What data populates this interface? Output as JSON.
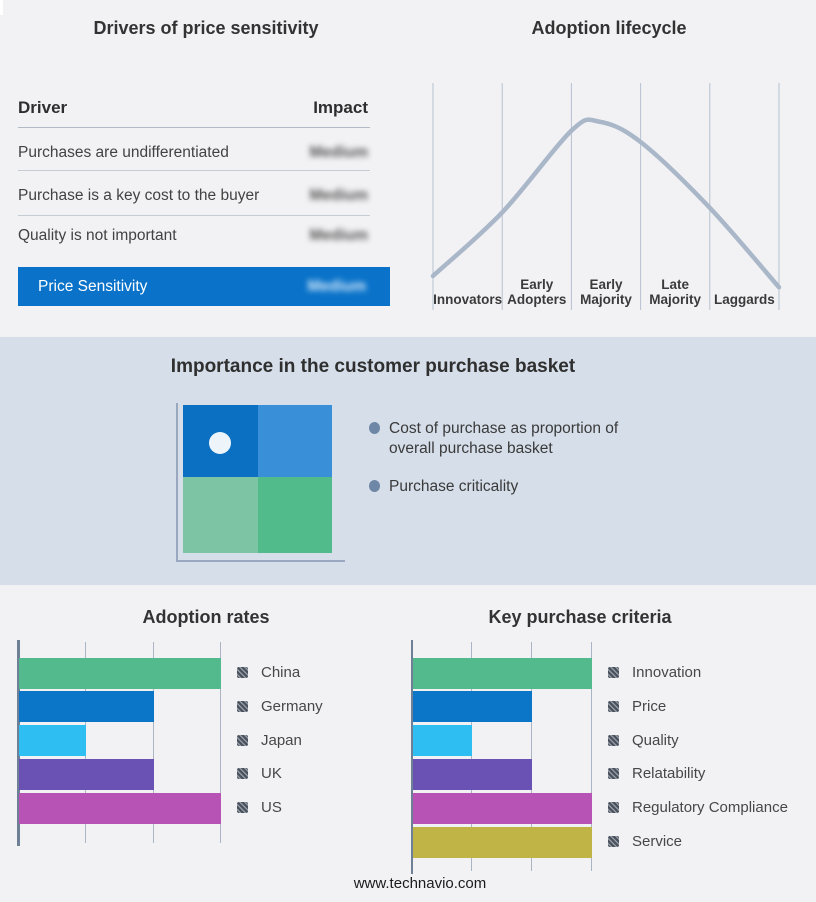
{
  "footer": {
    "text": "www.technavio.com"
  },
  "colors": {
    "page_bg": "#f2f2f4",
    "band_bg": "#d5dee9",
    "brand_blue": "#0a73c9",
    "curve": "#a9b7c9",
    "lifecycle_grid": "#b6c1d0",
    "chart_grid": "#aab6c6",
    "chart_axis": "#6e8096",
    "bullet_dot": "#6f87a6",
    "quadrant_top_left": "#0b6fc2",
    "quadrant_top_right": "#3990d9",
    "quadrant_bottom_left": "#7cc4a4",
    "quadrant_bottom_right": "#52bb8b",
    "quadrant_dot": "#edf5fb"
  },
  "drivers_panel": {
    "title": "Drivers of price sensitivity",
    "columns": {
      "driver": "Driver",
      "impact": "Impact"
    },
    "rows": [
      {
        "driver": "Purchases are undifferentiated",
        "impact": "Medium",
        "impact_blurred": true
      },
      {
        "driver": "Purchase is a key cost to the buyer",
        "impact": "Medium",
        "impact_blurred": true
      },
      {
        "driver": "Quality is not important",
        "impact": "Medium",
        "impact_blurred": true
      }
    ],
    "summary_row": {
      "label": "Price Sensitivity",
      "impact": "Medium",
      "impact_blurred": true
    }
  },
  "basket_panel": {
    "title": "Importance in the customer purchase basket",
    "bullets": [
      "Cost of purchase as proportion of\noverall purchase basket",
      "Purchase criticality"
    ]
  },
  "chart_data": [
    {
      "id": "adoption-lifecycle",
      "type": "line",
      "title": "Adoption lifecycle",
      "categories": [
        "Innovators",
        "Early Adopters",
        "Early Majority",
        "Late Majority",
        "Laggards"
      ],
      "curve_points_norm": [
        [
          0,
          0.15
        ],
        [
          0.2,
          0.43
        ],
        [
          0.4,
          0.79
        ],
        [
          0.48,
          0.83
        ],
        [
          0.6,
          0.74
        ],
        [
          0.8,
          0.45
        ],
        [
          1,
          0.1
        ]
      ],
      "grid": "vertical-only",
      "legend": false,
      "ylim": [
        0,
        1
      ]
    },
    {
      "id": "adoption-rates",
      "type": "bar",
      "orientation": "horizontal",
      "title": "Adoption rates",
      "categories": [
        "China",
        "Germany",
        "Japan",
        "UK",
        "US"
      ],
      "values": [
        3,
        2,
        1,
        2,
        3
      ],
      "colors": [
        "#52ba8c",
        "#0b76c8",
        "#2fbef2",
        "#6a52b5",
        "#b753b5"
      ],
      "xlim": [
        0,
        3
      ],
      "grid": "vertical-only",
      "legend_position": "right"
    },
    {
      "id": "key-purchase-criteria",
      "type": "bar",
      "orientation": "horizontal",
      "title": "Key purchase criteria",
      "categories": [
        "Innovation",
        "Price",
        "Quality",
        "Relatability",
        "Regulatory Compliance",
        "Service"
      ],
      "values": [
        3,
        2,
        1,
        2,
        3,
        3
      ],
      "colors": [
        "#52ba8c",
        "#0b76c8",
        "#2fbef2",
        "#6a52b5",
        "#b753b5",
        "#c0b447"
      ],
      "xlim": [
        0,
        3
      ],
      "grid": "vertical-only",
      "legend_position": "right"
    }
  ]
}
